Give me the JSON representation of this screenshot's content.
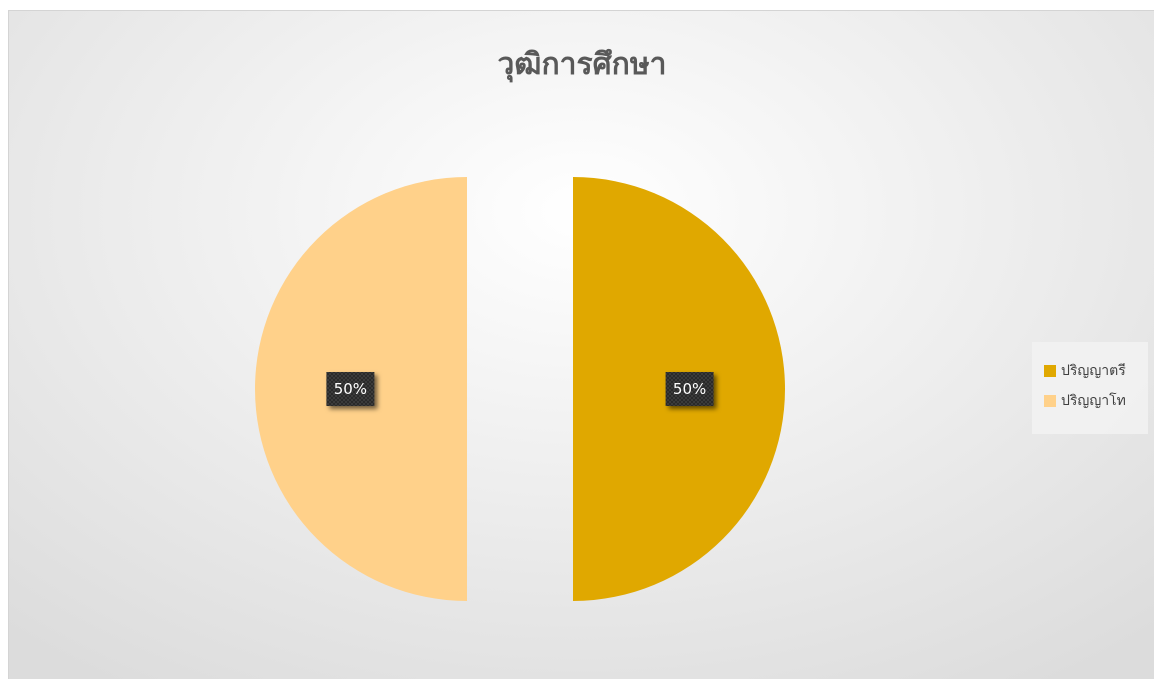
{
  "chart_data": {
    "type": "pie",
    "title": "วุฒิการศึกษา",
    "categories": [
      "ปริญญาตรี",
      "ปริญญาโท"
    ],
    "values": [
      50,
      50
    ],
    "data_labels": [
      "50%",
      "50%"
    ],
    "colors": [
      "#E0A800",
      "#FFD18A"
    ],
    "exploded": true,
    "legend_position": "right"
  }
}
